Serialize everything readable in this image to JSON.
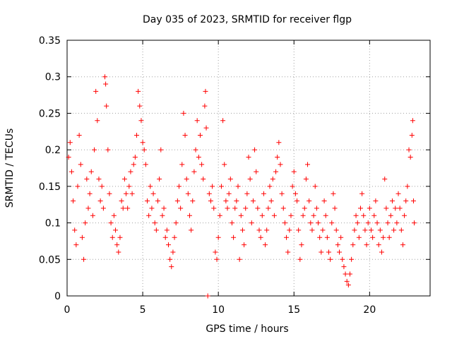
{
  "chart_data": {
    "type": "scatter",
    "title": "Day 035 of 2023, SRMTID for receiver flgp",
    "xlabel": "GPS time / hours",
    "ylabel": "SRMTID / TECUs",
    "xlim": [
      0,
      24
    ],
    "ylim": [
      0,
      0.35
    ],
    "xticks": [
      0,
      5,
      10,
      15,
      20
    ],
    "xtick_labels": [
      "0",
      "5",
      "10",
      "15",
      "20"
    ],
    "yticks": [
      0,
      0.05,
      0.1,
      0.15,
      0.2,
      0.25,
      0.3,
      0.35
    ],
    "ytick_labels": [
      "0",
      "0.05",
      "0.1",
      "0.15",
      "0.2",
      "0.25",
      "0.3",
      "0.35"
    ],
    "grid": true,
    "marker": "+",
    "color": "#ff0000",
    "series": [
      {
        "name": "SRMTID",
        "points": [
          [
            0.1,
            0.19
          ],
          [
            0.2,
            0.21
          ],
          [
            0.3,
            0.17
          ],
          [
            0.4,
            0.13
          ],
          [
            0.5,
            0.09
          ],
          [
            0.6,
            0.07
          ],
          [
            0.7,
            0.15
          ],
          [
            0.8,
            0.22
          ],
          [
            0.9,
            0.18
          ],
          [
            1.0,
            0.08
          ],
          [
            1.1,
            0.05
          ],
          [
            1.2,
            0.1
          ],
          [
            1.3,
            0.16
          ],
          [
            1.4,
            0.12
          ],
          [
            1.5,
            0.14
          ],
          [
            1.6,
            0.17
          ],
          [
            1.7,
            0.11
          ],
          [
            1.8,
            0.2
          ],
          [
            1.9,
            0.28
          ],
          [
            2.0,
            0.24
          ],
          [
            2.1,
            0.16
          ],
          [
            2.2,
            0.13
          ],
          [
            2.3,
            0.15
          ],
          [
            2.4,
            0.12
          ],
          [
            2.5,
            0.3
          ],
          [
            2.55,
            0.29
          ],
          [
            2.6,
            0.26
          ],
          [
            2.7,
            0.2
          ],
          [
            2.8,
            0.14
          ],
          [
            2.9,
            0.1
          ],
          [
            3.0,
            0.08
          ],
          [
            3.1,
            0.11
          ],
          [
            3.2,
            0.09
          ],
          [
            3.3,
            0.07
          ],
          [
            3.4,
            0.06
          ],
          [
            3.5,
            0.08
          ],
          [
            3.6,
            0.13
          ],
          [
            3.7,
            0.12
          ],
          [
            3.8,
            0.16
          ],
          [
            3.9,
            0.14
          ],
          [
            4.0,
            0.12
          ],
          [
            4.1,
            0.15
          ],
          [
            4.2,
            0.17
          ],
          [
            4.3,
            0.14
          ],
          [
            4.4,
            0.18
          ],
          [
            4.5,
            0.19
          ],
          [
            4.6,
            0.22
          ],
          [
            4.7,
            0.28
          ],
          [
            4.8,
            0.26
          ],
          [
            4.9,
            0.24
          ],
          [
            5.0,
            0.21
          ],
          [
            5.1,
            0.2
          ],
          [
            5.2,
            0.18
          ],
          [
            5.3,
            0.13
          ],
          [
            5.4,
            0.11
          ],
          [
            5.5,
            0.15
          ],
          [
            5.6,
            0.12
          ],
          [
            5.7,
            0.14
          ],
          [
            5.8,
            0.1
          ],
          [
            5.9,
            0.09
          ],
          [
            6.0,
            0.13
          ],
          [
            6.1,
            0.16
          ],
          [
            6.2,
            0.2
          ],
          [
            6.3,
            0.11
          ],
          [
            6.4,
            0.12
          ],
          [
            6.5,
            0.08
          ],
          [
            6.6,
            0.09
          ],
          [
            6.7,
            0.07
          ],
          [
            6.8,
            0.05
          ],
          [
            6.9,
            0.04
          ],
          [
            7.0,
            0.06
          ],
          [
            7.1,
            0.08
          ],
          [
            7.2,
            0.1
          ],
          [
            7.3,
            0.13
          ],
          [
            7.4,
            0.15
          ],
          [
            7.5,
            0.12
          ],
          [
            7.6,
            0.18
          ],
          [
            7.7,
            0.25
          ],
          [
            7.8,
            0.22
          ],
          [
            7.9,
            0.16
          ],
          [
            8.0,
            0.14
          ],
          [
            8.1,
            0.11
          ],
          [
            8.2,
            0.09
          ],
          [
            8.3,
            0.13
          ],
          [
            8.4,
            0.17
          ],
          [
            8.5,
            0.2
          ],
          [
            8.6,
            0.24
          ],
          [
            8.7,
            0.19
          ],
          [
            8.8,
            0.22
          ],
          [
            8.9,
            0.18
          ],
          [
            9.0,
            0.16
          ],
          [
            9.1,
            0.26
          ],
          [
            9.15,
            0.28
          ],
          [
            9.2,
            0.23
          ],
          [
            9.3,
            0.0
          ],
          [
            9.4,
            0.14
          ],
          [
            9.5,
            0.13
          ],
          [
            9.6,
            0.15
          ],
          [
            9.7,
            0.12
          ],
          [
            9.8,
            0.06
          ],
          [
            9.9,
            0.05
          ],
          [
            10.0,
            0.08
          ],
          [
            10.1,
            0.11
          ],
          [
            10.2,
            0.15
          ],
          [
            10.3,
            0.24
          ],
          [
            10.4,
            0.18
          ],
          [
            10.5,
            0.13
          ],
          [
            10.6,
            0.12
          ],
          [
            10.7,
            0.14
          ],
          [
            10.8,
            0.16
          ],
          [
            10.9,
            0.1
          ],
          [
            11.0,
            0.08
          ],
          [
            11.1,
            0.12
          ],
          [
            11.2,
            0.13
          ],
          [
            11.3,
            0.15
          ],
          [
            11.4,
            0.05
          ],
          [
            11.5,
            0.11
          ],
          [
            11.6,
            0.09
          ],
          [
            11.7,
            0.07
          ],
          [
            11.8,
            0.12
          ],
          [
            11.9,
            0.14
          ],
          [
            12.0,
            0.19
          ],
          [
            12.1,
            0.16
          ],
          [
            12.2,
            0.1
          ],
          [
            12.3,
            0.13
          ],
          [
            12.4,
            0.2
          ],
          [
            12.5,
            0.17
          ],
          [
            12.6,
            0.12
          ],
          [
            12.7,
            0.09
          ],
          [
            12.8,
            0.08
          ],
          [
            12.9,
            0.11
          ],
          [
            13.0,
            0.14
          ],
          [
            13.1,
            0.07
          ],
          [
            13.2,
            0.09
          ],
          [
            13.3,
            0.12
          ],
          [
            13.4,
            0.15
          ],
          [
            13.5,
            0.13
          ],
          [
            13.6,
            0.16
          ],
          [
            13.7,
            0.11
          ],
          [
            13.8,
            0.17
          ],
          [
            13.9,
            0.19
          ],
          [
            14.0,
            0.21
          ],
          [
            14.1,
            0.18
          ],
          [
            14.2,
            0.14
          ],
          [
            14.3,
            0.12
          ],
          [
            14.4,
            0.1
          ],
          [
            14.5,
            0.08
          ],
          [
            14.6,
            0.06
          ],
          [
            14.7,
            0.09
          ],
          [
            14.8,
            0.11
          ],
          [
            14.9,
            0.15
          ],
          [
            15.0,
            0.17
          ],
          [
            15.1,
            0.14
          ],
          [
            15.2,
            0.13
          ],
          [
            15.3,
            0.09
          ],
          [
            15.4,
            0.05
          ],
          [
            15.5,
            0.07
          ],
          [
            15.6,
            0.11
          ],
          [
            15.7,
            0.12
          ],
          [
            15.8,
            0.16
          ],
          [
            15.9,
            0.18
          ],
          [
            16.0,
            0.13
          ],
          [
            16.1,
            0.1
          ],
          [
            16.2,
            0.09
          ],
          [
            16.3,
            0.11
          ],
          [
            16.4,
            0.15
          ],
          [
            16.5,
            0.12
          ],
          [
            16.6,
            0.1
          ],
          [
            16.7,
            0.08
          ],
          [
            16.8,
            0.06
          ],
          [
            16.9,
            0.09
          ],
          [
            17.0,
            0.13
          ],
          [
            17.1,
            0.11
          ],
          [
            17.2,
            0.08
          ],
          [
            17.3,
            0.06
          ],
          [
            17.4,
            0.05
          ],
          [
            17.5,
            0.1
          ],
          [
            17.6,
            0.14
          ],
          [
            17.7,
            0.12
          ],
          [
            17.8,
            0.09
          ],
          [
            17.9,
            0.07
          ],
          [
            18.0,
            0.06
          ],
          [
            18.1,
            0.08
          ],
          [
            18.2,
            0.05
          ],
          [
            18.3,
            0.04
          ],
          [
            18.4,
            0.03
          ],
          [
            18.5,
            0.02
          ],
          [
            18.6,
            0.015
          ],
          [
            18.7,
            0.03
          ],
          [
            18.8,
            0.05
          ],
          [
            18.9,
            0.07
          ],
          [
            19.0,
            0.09
          ],
          [
            19.1,
            0.11
          ],
          [
            19.2,
            0.1
          ],
          [
            19.3,
            0.08
          ],
          [
            19.4,
            0.12
          ],
          [
            19.5,
            0.14
          ],
          [
            19.6,
            0.11
          ],
          [
            19.7,
            0.09
          ],
          [
            19.8,
            0.07
          ],
          [
            19.9,
            0.1
          ],
          [
            20.0,
            0.12
          ],
          [
            20.1,
            0.09
          ],
          [
            20.2,
            0.08
          ],
          [
            20.3,
            0.11
          ],
          [
            20.4,
            0.13
          ],
          [
            20.5,
            0.1
          ],
          [
            20.6,
            0.07
          ],
          [
            20.7,
            0.09
          ],
          [
            20.8,
            0.06
          ],
          [
            20.9,
            0.08
          ],
          [
            21.0,
            0.16
          ],
          [
            21.1,
            0.12
          ],
          [
            21.2,
            0.1
          ],
          [
            21.3,
            0.08
          ],
          [
            21.4,
            0.11
          ],
          [
            21.5,
            0.13
          ],
          [
            21.6,
            0.09
          ],
          [
            21.7,
            0.12
          ],
          [
            21.8,
            0.1
          ],
          [
            21.9,
            0.14
          ],
          [
            22.0,
            0.12
          ],
          [
            22.1,
            0.09
          ],
          [
            22.2,
            0.07
          ],
          [
            22.3,
            0.11
          ],
          [
            22.4,
            0.13
          ],
          [
            22.5,
            0.15
          ],
          [
            22.6,
            0.2
          ],
          [
            22.7,
            0.19
          ],
          [
            22.8,
            0.22
          ],
          [
            22.85,
            0.24
          ],
          [
            22.9,
            0.13
          ],
          [
            22.95,
            0.1
          ]
        ]
      }
    ]
  }
}
